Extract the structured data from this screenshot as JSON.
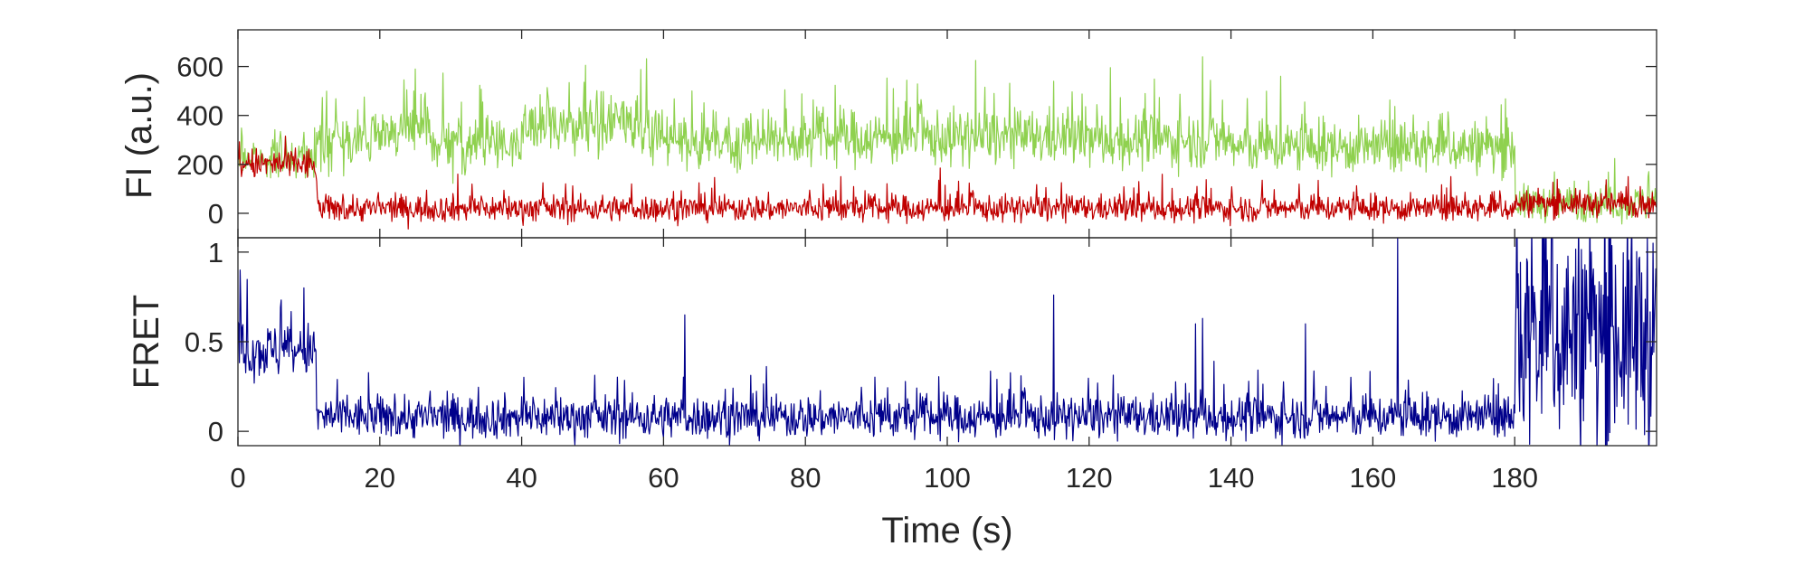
{
  "chart_data": [
    {
      "type": "line",
      "panel": "top",
      "ylabel": "FI (a.u.)",
      "xlabel": "",
      "xlim": [
        0,
        200
      ],
      "ylim": [
        -100,
        750
      ],
      "yticks": [
        0,
        200,
        400,
        600
      ],
      "ytick_labels": [
        "0",
        "200",
        "400",
        "600"
      ],
      "x_tick_labels_shown": false,
      "grid": false,
      "series": [
        {
          "key": "donor",
          "color": "#8fd14f",
          "segments": [
            {
              "t0": 0,
              "t1": 11,
              "mean": 230,
              "noise": 65
            },
            {
              "t0": 11,
              "t1": 20,
              "mean": 300,
              "noise": 95
            },
            {
              "t0": 20,
              "t1": 27,
              "mean": 340,
              "noise": 100
            },
            {
              "t0": 27,
              "t1": 40,
              "mean": 280,
              "noise": 95
            },
            {
              "t0": 40,
              "t1": 58,
              "mean": 360,
              "noise": 100
            },
            {
              "t0": 58,
              "t1": 80,
              "mean": 300,
              "noise": 95
            },
            {
              "t0": 80,
              "t1": 120,
              "mean": 310,
              "noise": 95
            },
            {
              "t0": 120,
              "t1": 140,
              "mean": 300,
              "noise": 95
            },
            {
              "t0": 140,
              "t1": 180,
              "mean": 270,
              "noise": 90
            },
            {
              "t0": 180,
              "t1": 200,
              "mean": 40,
              "noise": 60
            }
          ],
          "spikes": [
            [
              25,
              590
            ],
            [
              49,
              605
            ],
            [
              104,
              625
            ],
            [
              136,
              640
            ],
            [
              147,
              560
            ],
            [
              115,
              540
            ],
            [
              64,
              500
            ]
          ]
        },
        {
          "key": "acceptor",
          "color": "#c00000",
          "segments": [
            {
              "t0": 0,
              "t1": 11,
              "mean": 200,
              "noise": 55
            },
            {
              "t0": 11,
              "t1": 180,
              "mean": 20,
              "noise": 45
            },
            {
              "t0": 180,
              "t1": 200,
              "mean": 40,
              "noise": 45
            }
          ],
          "spikes": [
            [
              31,
              160
            ],
            [
              85,
              150
            ],
            [
              99,
              185
            ],
            [
              127,
              130
            ],
            [
              171,
              150
            ],
            [
              196,
              150
            ]
          ]
        }
      ]
    },
    {
      "type": "line",
      "panel": "bottom",
      "ylabel": "FRET",
      "xlabel": "Time (s)",
      "xlim": [
        0,
        200
      ],
      "ylim": [
        -0.08,
        1.08
      ],
      "xticks": [
        0,
        20,
        40,
        60,
        80,
        100,
        120,
        140,
        160,
        180
      ],
      "xtick_labels": [
        "0",
        "20",
        "40",
        "60",
        "80",
        "100",
        "120",
        "140",
        "160",
        "180"
      ],
      "yticks": [
        0,
        0.5,
        1
      ],
      "ytick_labels": [
        "0",
        "0.5",
        "1"
      ],
      "grid": false,
      "series": [
        {
          "key": "fret",
          "color": "#00008b",
          "segments": [
            {
              "t0": 0,
              "t1": 11,
              "mean": 0.45,
              "noise": 0.13
            },
            {
              "t0": 11,
              "t1": 180,
              "mean": 0.08,
              "noise": 0.1
            },
            {
              "t0": 180,
              "t1": 200,
              "mean": 0.55,
              "noise": 0.55
            }
          ],
          "spikes": [
            [
              0.3,
              0.9
            ],
            [
              9.3,
              0.8
            ],
            [
              63,
              0.65
            ],
            [
              115,
              0.76
            ],
            [
              163.5,
              1.08
            ],
            [
              150.5,
              0.6
            ],
            [
              136,
              0.63
            ],
            [
              135,
              0.6
            ]
          ]
        }
      ]
    }
  ]
}
